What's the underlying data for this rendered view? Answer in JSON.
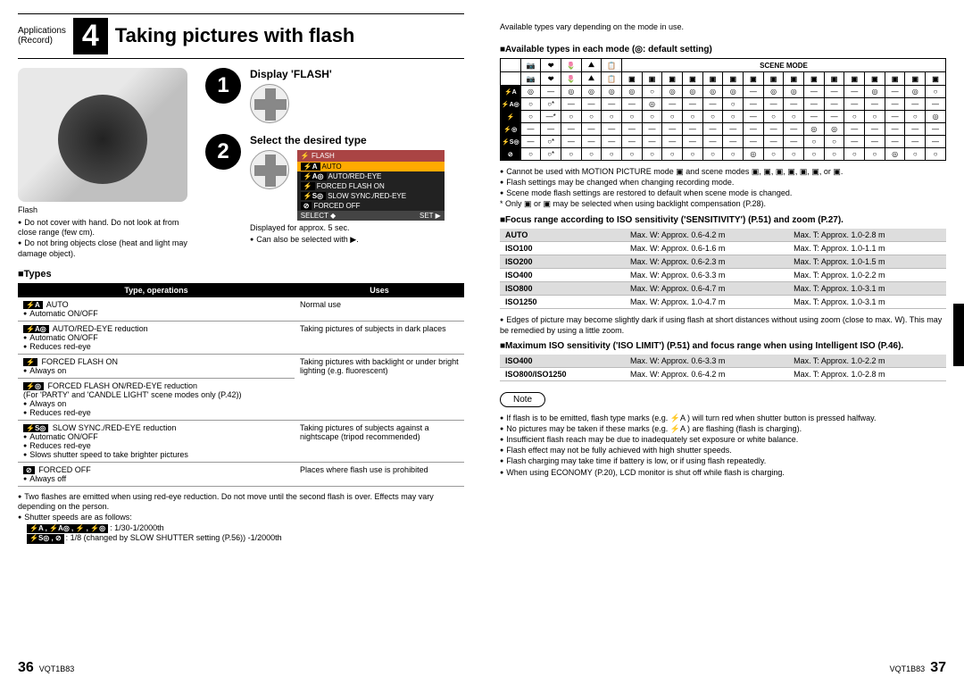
{
  "header": {
    "app_line1": "Applications",
    "app_line2": "(Record)",
    "chapter_num": "4",
    "title": "Taking pictures with flash",
    "right_note": "Available types vary depending on the mode in use."
  },
  "camera": {
    "flash_label": "Flash",
    "note1": "Do not cover with hand. Do not look at from close range (few cm).",
    "note2": "Do not bring objects close (heat and light may damage object)."
  },
  "steps": {
    "s1": {
      "title": "Display 'FLASH'"
    },
    "s2": {
      "title": "Select the desired type",
      "menu_header": "⚡ FLASH",
      "items": [
        "AUTO",
        "AUTO/RED-EYE",
        "FORCED FLASH ON",
        "SLOW SYNC./RED-EYE",
        "FORCED OFF"
      ],
      "badges": [
        "⚡A",
        "⚡A◎",
        "⚡",
        "⚡S◎",
        "⊘"
      ],
      "footer_l": "SELECT ◆",
      "footer_r": "SET ▶",
      "note1": "Displayed for approx. 5 sec.",
      "note2": "Can also be selected with ▶."
    }
  },
  "types_section_title": "■Types",
  "types_table": {
    "col1": "Type, operations",
    "col2": "Uses",
    "rows": [
      {
        "badge": "⚡A",
        "name": "AUTO",
        "ops": [
          "Automatic ON/OFF"
        ],
        "uses": "Normal use"
      },
      {
        "badge": "⚡A◎",
        "name": "AUTO/RED-EYE reduction",
        "ops": [
          "Automatic ON/OFF",
          "Reduces red-eye"
        ],
        "uses": "Taking pictures of subjects in dark places"
      },
      {
        "badge": "⚡",
        "name": "FORCED FLASH ON",
        "ops": [
          "Always on"
        ],
        "uses_rowspan": true
      },
      {
        "badge": "⚡◎",
        "name": "FORCED FLASH ON/RED-EYE reduction",
        "subnote": "(For 'PARTY' and 'CANDLE LIGHT' scene modes only (P.42))",
        "ops": [
          "Always on",
          "Reduces red-eye"
        ],
        "uses": "Taking pictures with backlight or under bright lighting (e.g. fluorescent)"
      },
      {
        "badge": "⚡S◎",
        "name": "SLOW SYNC./RED-EYE reduction",
        "ops": [
          "Automatic ON/OFF",
          "Reduces red-eye",
          "Slows shutter speed to take brighter pictures"
        ],
        "uses": "Taking pictures of subjects against a nightscape (tripod recommended)"
      },
      {
        "badge": "⊘",
        "name": "FORCED OFF",
        "ops": [
          "Always off"
        ],
        "uses": "Places where flash use is prohibited"
      }
    ]
  },
  "left_notes": {
    "l1": "Two flashes are emitted when using red-eye reduction. Do not move until the second flash is over. Effects may vary depending on the person.",
    "l2": "Shutter speeds are as follows:",
    "l3_badges": "⚡A , ⚡A◎ , ⚡ , ⚡◎",
    "l3": ": 1/30-1/2000th",
    "l4_badges": "⚡S◎ , ⊘",
    "l4": ": 1/8 (changed by SLOW SHUTTER setting (P.56)) -1/2000th"
  },
  "page_left": {
    "num": "36",
    "code": "VQT1B83"
  },
  "page_right": {
    "num": "37",
    "code": "VQT1B83"
  },
  "right": {
    "mode_title": "■Available types in each mode (◎: default setting)",
    "scene_header": "SCENE MODE",
    "mode_rows": [
      "⚡A",
      "⚡A◎",
      "⚡",
      "⚡◎",
      "⚡S◎",
      "⊘"
    ],
    "grid": [
      [
        "◎",
        "—",
        "◎",
        "◎",
        "◎",
        "◎",
        "○",
        "◎",
        "◎",
        "◎",
        "◎",
        "—",
        "◎",
        "◎",
        "—",
        "—",
        "—",
        "◎",
        "—",
        "◎",
        "○"
      ],
      [
        "○",
        "○*",
        "—",
        "—",
        "—",
        "—",
        "◎",
        "—",
        "—",
        "—",
        "○",
        "—",
        "—",
        "—",
        "—",
        "—",
        "—",
        "—",
        "—",
        "—",
        "—"
      ],
      [
        "○",
        "—*",
        "○",
        "○",
        "○",
        "○",
        "○",
        "○",
        "○",
        "○",
        "○",
        "—",
        "○",
        "○",
        "—",
        "—",
        "○",
        "○",
        "—",
        "○",
        "◎"
      ],
      [
        "—",
        "—",
        "—",
        "—",
        "—",
        "—",
        "—",
        "—",
        "—",
        "—",
        "—",
        "—",
        "—",
        "—",
        "◎",
        "◎",
        "—",
        "—",
        "—",
        "—",
        "—"
      ],
      [
        "—",
        "○*",
        "—",
        "—",
        "—",
        "—",
        "—",
        "—",
        "—",
        "—",
        "—",
        "—",
        "—",
        "—",
        "○",
        "○",
        "—",
        "—",
        "—",
        "—",
        "—"
      ],
      [
        "○",
        "○*",
        "○",
        "○",
        "○",
        "○",
        "○",
        "○",
        "○",
        "○",
        "○",
        "◎",
        "○",
        "○",
        "○",
        "○",
        "○",
        "○",
        "◎",
        "○",
        "○"
      ]
    ],
    "modes_note1": "Cannot be used with MOTION PICTURE mode ▣ and scene modes ▣, ▣, ▣, ▣, ▣, ▣, or ▣.",
    "modes_note2": "Flash settings may be changed when changing recording mode.",
    "modes_note3": "Scene mode flash settings are restored to default when scene mode is changed.",
    "modes_note4": "* Only ▣ or ▣ may be selected when using backlight compensation (P.28).",
    "focus_title": "■Focus range according to ISO sensitivity ('SENSITIVITY') (P.51) and zoom (P.27).",
    "focus_rows": [
      [
        "AUTO",
        "Max. W: Approx. 0.6-4.2 m",
        "Max. T: Approx. 1.0-2.8 m"
      ],
      [
        "ISO100",
        "Max. W: Approx. 0.6-1.6 m",
        "Max. T: Approx. 1.0-1.1 m"
      ],
      [
        "ISO200",
        "Max. W: Approx. 0.6-2.3 m",
        "Max. T: Approx. 1.0-1.5 m"
      ],
      [
        "ISO400",
        "Max. W: Approx. 0.6-3.3 m",
        "Max. T: Approx. 1.0-2.2 m"
      ],
      [
        "ISO800",
        "Max. W: Approx. 0.6-4.7 m",
        "Max. T: Approx. 1.0-3.1 m"
      ],
      [
        "ISO1250",
        "Max. W: Approx. 1.0-4.7 m",
        "Max. T: Approx. 1.0-3.1 m"
      ]
    ],
    "focus_note": "Edges of picture may become slightly dark if using flash at short distances without using zoom (close to max. W). This may be remedied by using a little zoom.",
    "iso_title": "■Maximum ISO sensitivity ('ISO LIMIT') (P.51) and focus range when using Intelligent ISO (P.46).",
    "iso_rows": [
      [
        "ISO400",
        "Max. W: Approx. 0.6-3.3 m",
        "Max. T: Approx. 1.0-2.2 m"
      ],
      [
        "ISO800/ISO1250",
        "Max. W: Approx. 0.6-4.2 m",
        "Max. T: Approx. 1.0-2.8 m"
      ]
    ],
    "note_label": "Note",
    "final_notes": [
      "If flash is to be emitted, flash type marks (e.g. ⚡A ) will turn red when shutter button is pressed halfway.",
      "No pictures may be taken if these marks (e.g. ⚡A ) are flashing (flash is charging).",
      "Insufficient flash reach may be due to inadequately set exposure or white balance.",
      "Flash effect may not be fully achieved with high shutter speeds.",
      "Flash charging may take time if battery is low, or if using flash repeatedly.",
      "When using ECONOMY (P.20), LCD monitor is shut off while flash is charging."
    ]
  }
}
